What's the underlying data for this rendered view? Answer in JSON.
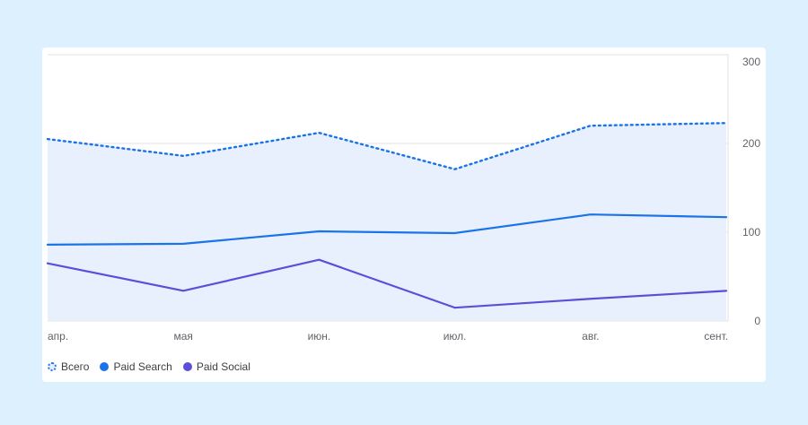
{
  "chart_data": {
    "type": "line",
    "categories": [
      "апр.",
      "мая",
      "июн.",
      "июл.",
      "авг.",
      "сент."
    ],
    "y_axis": {
      "position": "right",
      "ylim": [
        0,
        300
      ],
      "ticks": [
        0,
        100,
        200,
        300
      ]
    },
    "grid": true,
    "legend_position": "bottom-left",
    "series": [
      {
        "name": "Всего",
        "values": [
          205,
          186,
          212,
          171,
          220,
          223
        ],
        "color": "#1a73e8",
        "style": "dotted",
        "area_fill": "#e8f0fe"
      },
      {
        "name": "Paid Search",
        "values": [
          86,
          87,
          101,
          99,
          120,
          117
        ],
        "color": "#1a73e8",
        "style": "solid"
      },
      {
        "name": "Paid Social",
        "values": [
          65,
          34,
          69,
          15,
          25,
          34
        ],
        "color": "#5b4fd8",
        "style": "solid"
      }
    ]
  }
}
